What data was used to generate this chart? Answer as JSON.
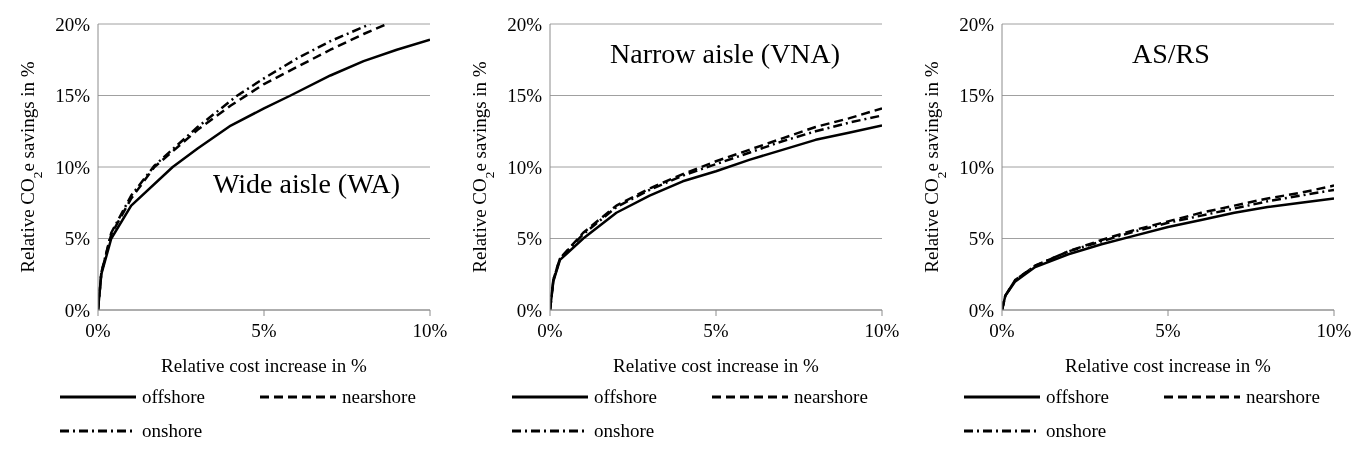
{
  "chart_data": [
    {
      "type": "line",
      "title": "Wide aisle (WA)",
      "xlabel": "Relative cost increase in %",
      "ylabel": "Relative CO$_{2}$e savings in %",
      "xlim": [
        0,
        10
      ],
      "xticks": [
        {
          "value": 0,
          "label": "0%"
        },
        {
          "value": 5,
          "label": "5%"
        },
        {
          "value": 10,
          "label": "10%"
        }
      ],
      "ylim": [
        0,
        20
      ],
      "yticks": [
        {
          "value": 0,
          "label": "0%"
        },
        {
          "value": 5,
          "label": "5%"
        },
        {
          "value": 10,
          "label": "10%"
        },
        {
          "value": 15,
          "label": "15%"
        },
        {
          "value": 20,
          "label": "20%"
        }
      ],
      "grid": "y",
      "legend": "bottom",
      "marker": "none",
      "series": [
        {
          "name": "offshore",
          "color": "#000000",
          "line_style": "solid",
          "x": [
            0,
            0.1,
            0.4,
            1,
            2.25,
            3,
            4,
            5,
            5.8,
            7,
            8,
            9,
            10
          ],
          "values": [
            0,
            2.5,
            5,
            7.3,
            10,
            11.3,
            12.9,
            14.1,
            15,
            16.4,
            17.4,
            18.2,
            18.9
          ]
        },
        {
          "name": "nearshore",
          "color": "#000000",
          "line_style": "dashed",
          "x": [
            0,
            0.1,
            0.4,
            1,
            1.7,
            3,
            4,
            5,
            6,
            7,
            8,
            8.7
          ],
          "values": [
            0,
            2.6,
            5.3,
            7.8,
            10,
            12.6,
            14.3,
            15.8,
            17,
            18.2,
            19.3,
            20
          ]
        },
        {
          "name": "onshore",
          "color": "#000000",
          "line_style": "dashdot",
          "x": [
            0,
            0.1,
            0.4,
            1,
            1.7,
            3,
            4.2,
            5,
            6,
            7,
            8.2
          ],
          "values": [
            0,
            2.6,
            5.4,
            8,
            10.1,
            12.8,
            15,
            16.2,
            17.6,
            18.8,
            20
          ]
        }
      ]
    },
    {
      "type": "line",
      "title": "Narrow aisle (VNA)",
      "xlabel": "Relative cost increase in %",
      "ylabel": "Relative CO$_{2}$e savings in %",
      "xlim": [
        0,
        10
      ],
      "xticks": [
        {
          "value": 0,
          "label": "0%"
        },
        {
          "value": 5,
          "label": "5%"
        },
        {
          "value": 10,
          "label": "10%"
        }
      ],
      "ylim": [
        0,
        20
      ],
      "yticks": [
        {
          "value": 0,
          "label": "0%"
        },
        {
          "value": 5,
          "label": "5%"
        },
        {
          "value": 10,
          "label": "10%"
        },
        {
          "value": 15,
          "label": "15%"
        },
        {
          "value": 20,
          "label": "20%"
        }
      ],
      "grid": "y",
      "legend": "bottom",
      "marker": "none",
      "series": [
        {
          "name": "offshore",
          "color": "#000000",
          "line_style": "solid",
          "x": [
            0,
            0.1,
            0.3,
            1,
            2,
            3,
            4,
            5,
            6,
            7,
            8,
            9,
            10
          ],
          "values": [
            0,
            2,
            3.5,
            5,
            6.8,
            8,
            9,
            9.7,
            10.5,
            11.2,
            11.9,
            12.4,
            12.9
          ]
        },
        {
          "name": "nearshore",
          "color": "#000000",
          "line_style": "dashed",
          "x": [
            0,
            0.1,
            0.3,
            1,
            2,
            3,
            4,
            5,
            6,
            7,
            8,
            9,
            10
          ],
          "values": [
            0,
            2.1,
            3.6,
            5.4,
            7.3,
            8.5,
            9.5,
            10.4,
            11.2,
            12,
            12.8,
            13.4,
            14.1
          ]
        },
        {
          "name": "onshore",
          "color": "#000000",
          "line_style": "dashdot",
          "x": [
            0,
            0.1,
            0.3,
            1,
            2,
            3,
            4,
            5,
            6,
            7,
            8,
            9,
            10
          ],
          "values": [
            0,
            2.1,
            3.6,
            5.3,
            7.2,
            8.4,
            9.4,
            10.2,
            11,
            11.8,
            12.5,
            13.1,
            13.6
          ]
        }
      ]
    },
    {
      "type": "line",
      "title": "AS/RS",
      "xlabel": "Relative cost increase in %",
      "ylabel": "Relative CO$_{2}$e savings in %",
      "xlim": [
        0,
        10
      ],
      "xticks": [
        {
          "value": 0,
          "label": "0%"
        },
        {
          "value": 5,
          "label": "5%"
        },
        {
          "value": 10,
          "label": "10%"
        }
      ],
      "ylim": [
        0,
        20
      ],
      "yticks": [
        {
          "value": 0,
          "label": "0%"
        },
        {
          "value": 5,
          "label": "5%"
        },
        {
          "value": 10,
          "label": "10%"
        },
        {
          "value": 15,
          "label": "15%"
        },
        {
          "value": 20,
          "label": "20%"
        }
      ],
      "grid": "y",
      "legend": "bottom",
      "marker": "none",
      "series": [
        {
          "name": "offshore",
          "color": "#000000",
          "line_style": "solid",
          "x": [
            0,
            0.1,
            0.4,
            1,
            2,
            3,
            4,
            5,
            6,
            7,
            8,
            9,
            10
          ],
          "values": [
            0,
            1,
            2,
            3,
            3.9,
            4.6,
            5.2,
            5.8,
            6.3,
            6.8,
            7.2,
            7.5,
            7.8
          ]
        },
        {
          "name": "nearshore",
          "color": "#000000",
          "line_style": "dashed",
          "x": [
            0,
            0.1,
            0.4,
            1,
            2,
            3,
            4,
            5,
            6,
            7,
            8,
            9,
            10
          ],
          "values": [
            0,
            1,
            2.1,
            3.1,
            4.1,
            4.9,
            5.6,
            6.2,
            6.8,
            7.3,
            7.8,
            8.2,
            8.7
          ]
        },
        {
          "name": "onshore",
          "color": "#000000",
          "line_style": "dashdot",
          "x": [
            0,
            0.1,
            0.4,
            1,
            2,
            3,
            4,
            5,
            6,
            7,
            8,
            9,
            10
          ],
          "values": [
            0,
            1,
            2.1,
            3.1,
            4.1,
            4.8,
            5.5,
            6.1,
            6.6,
            7.1,
            7.6,
            8,
            8.4
          ]
        }
      ]
    }
  ]
}
